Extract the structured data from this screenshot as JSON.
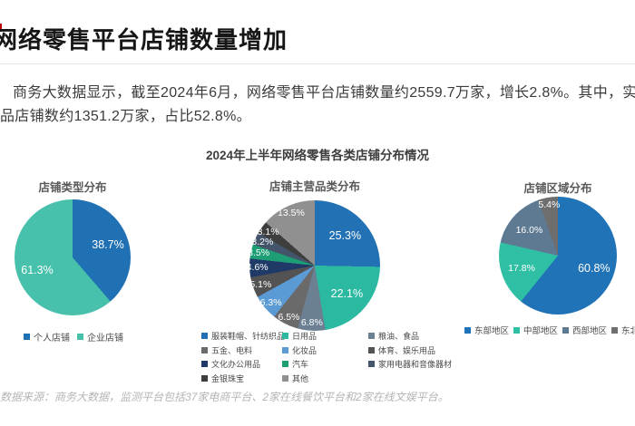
{
  "page": {
    "accent_red": "#c00000",
    "title": "网络零售平台店铺数量增加",
    "intro_line1": "商务大数据显示，截至2024年6月，网络零售平台店铺数量约2559.7万家，增长2.8%。其中，实物",
    "intro_line2": "品店铺数约1351.2万家，占比52.8%。",
    "chart_section_title": "2024年上半年网络零售各类店铺分布情况",
    "footnote": "数据来源：商务大数据，监测平台包括37家电商平台、2家在线餐饮平台和2家在线文娱平台。"
  },
  "chart_data": [
    {
      "type": "pie",
      "title": "店铺类型分布",
      "start_angle": "12-oclock-clockwise",
      "slices": [
        {
          "label": "个人店铺",
          "value": 38.7,
          "pct_label": "38.7%",
          "color": "#2070b4"
        },
        {
          "label": "企业店铺",
          "value": 61.3,
          "pct_label": "61.3%",
          "color": "#47c1ab"
        }
      ],
      "legend_columns": [
        [
          0
        ],
        [
          1
        ]
      ],
      "legend_position": "bottom"
    },
    {
      "type": "pie",
      "title": "店铺主营品类分布",
      "start_angle": "12-oclock-clockwise",
      "slices": [
        {
          "label": "服装鞋帽、针纺织品",
          "value": 25.3,
          "pct_label": "25.3%",
          "color": "#2271b5"
        },
        {
          "label": "日用品",
          "value": 22.1,
          "pct_label": "22.1%",
          "color": "#2cb9a1"
        },
        {
          "label": "粮油、食品",
          "value": 6.8,
          "pct_label": "6.8%",
          "color": "#6b8093"
        },
        {
          "label": "五金、电料",
          "value": 6.5,
          "pct_label": "6.5%",
          "color": "#6a6a6a"
        },
        {
          "label": "化妆品",
          "value": 6.3,
          "pct_label": "6.3%",
          "color": "#5b9bd5"
        },
        {
          "label": "体育、娱乐用品",
          "value": 5.1,
          "pct_label": "5.1%",
          "color": "#535353"
        },
        {
          "label": "文化办公用品",
          "value": 4.6,
          "pct_label": "4.6%",
          "color": "#1f3a66"
        },
        {
          "label": "汽车",
          "value": 3.5,
          "pct_label": "3.5%",
          "color": "#1d9e74"
        },
        {
          "label": "家用电器和音像器材",
          "value": 3.2,
          "pct_label": "3.2%",
          "color": "#44546a"
        },
        {
          "label": "金银珠宝",
          "value": 3.1,
          "pct_label": "3.1%",
          "color": "#3e3e3e"
        },
        {
          "label": "其他",
          "value": 13.5,
          "pct_label": "13.5%",
          "color": "#909090"
        }
      ],
      "legend_columns": [
        [
          0,
          3,
          6,
          9
        ],
        [
          1,
          4,
          7,
          10
        ],
        [
          2,
          5,
          8
        ]
      ],
      "legend_position": "bottom"
    },
    {
      "type": "pie",
      "title": "店铺区域分布",
      "start_angle": "12-oclock-clockwise",
      "slices": [
        {
          "label": "东部地区",
          "value": 60.8,
          "pct_label": "60.8%",
          "color": "#2173b7"
        },
        {
          "label": "中部地区",
          "value": 17.8,
          "pct_label": "17.8%",
          "color": "#2fbfa5"
        },
        {
          "label": "西部地区",
          "value": 16.0,
          "pct_label": "16.0%",
          "color": "#5e7a92"
        },
        {
          "label": "东北地区",
          "value": 5.4,
          "pct_label": "5.4%",
          "color": "#6e6e6e"
        }
      ],
      "legend_columns": [
        [
          0
        ],
        [
          1
        ],
        [
          2
        ],
        [
          3
        ]
      ],
      "legend_position": "bottom"
    }
  ]
}
